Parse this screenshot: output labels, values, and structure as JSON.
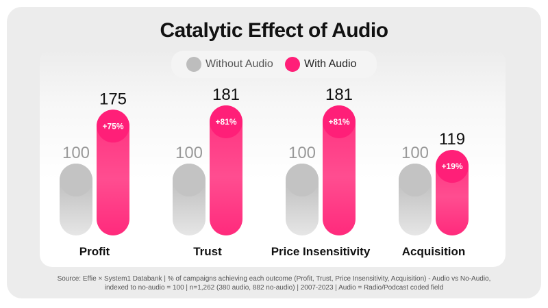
{
  "chart_data": {
    "type": "bar",
    "title": "Catalytic Effect of Audio",
    "categories": [
      "Profit",
      "Trust",
      "Price Insensitivity",
      "Acquisition"
    ],
    "series": [
      {
        "name": "Without Audio",
        "values": [
          100,
          100,
          100,
          100
        ],
        "color": "#c8c8c8"
      },
      {
        "name": "With Audio",
        "values": [
          175,
          181,
          181,
          119
        ],
        "color": "#ff1f78"
      }
    ],
    "uplift_labels": [
      "+75%",
      "+81%",
      "+81%",
      "+19%"
    ],
    "ylim": [
      0,
      181
    ],
    "legend": "top-center",
    "grid": false
  },
  "source_note": {
    "line1": "Source: Effie × System1 Databank | % of campaigns achieving each outcome (Profit, Trust, Price Insensitivity, Acquisition) - Audio vs No-Audio,",
    "line2": "indexed to no-audio = 100 | n=1,262 (380 audio, 882 no-audio) | 2007-2023 | Audio = Radio/Podcast coded field"
  },
  "colors": {
    "accent": "#ff1f78",
    "neutral": "#c8c8c8",
    "card_background": "#ececec"
  }
}
